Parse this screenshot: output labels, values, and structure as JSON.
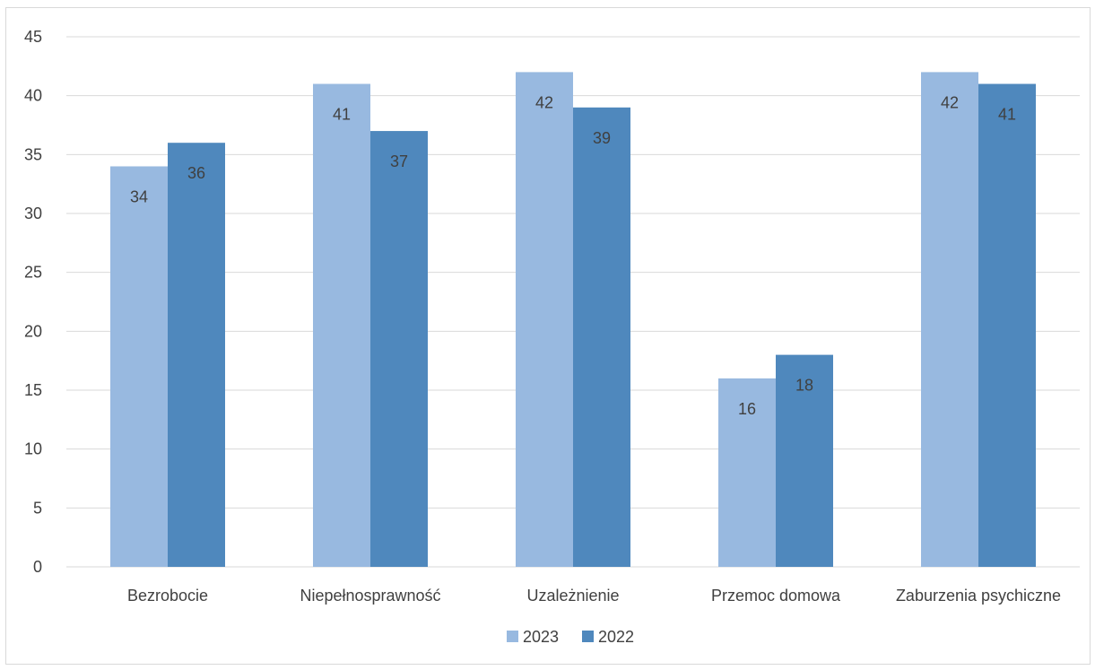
{
  "chart_data": {
    "type": "bar",
    "title": "",
    "xlabel": "",
    "ylabel": "",
    "categories": [
      "Bezrobocie",
      "Niepełnosprawność",
      "Uzależnienie",
      "Przemoc domowa",
      "Zaburzenia psychiczne"
    ],
    "series": [
      {
        "name": "2023",
        "color": "#98b9e0",
        "values": [
          34,
          41,
          42,
          16,
          42
        ]
      },
      {
        "name": "2022",
        "color": "#4f88bd",
        "values": [
          36,
          37,
          39,
          18,
          41
        ]
      }
    ],
    "ylim": [
      0,
      45
    ],
    "yticks": [
      0,
      5,
      10,
      15,
      20,
      25,
      30,
      35,
      40,
      45
    ],
    "grid": true,
    "gridColor": "#d9d9d9",
    "legend": "bottom",
    "data_labels": true
  }
}
